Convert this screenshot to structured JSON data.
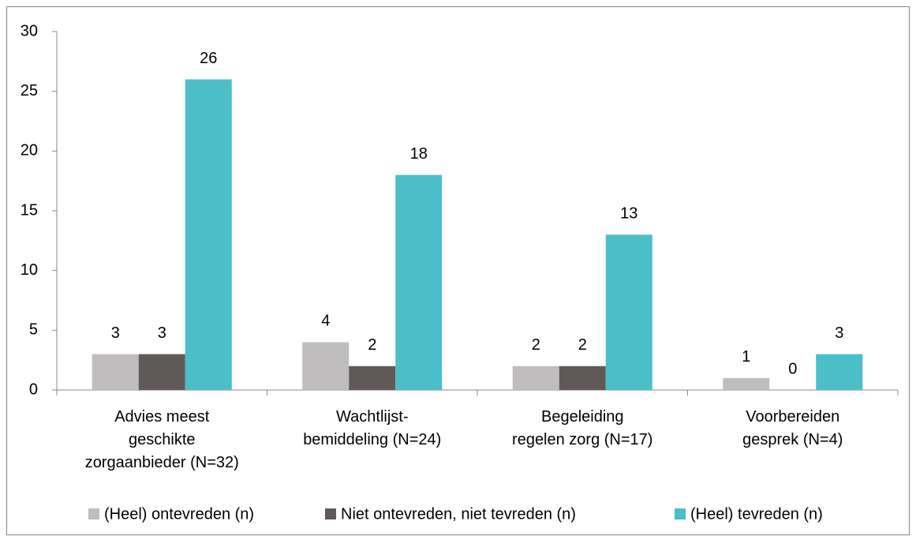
{
  "chart_data": {
    "type": "bar",
    "categories": [
      "Advies meest\ngeschikte\nzorgaanbieder (N=32)",
      "Wachtlijst-\nbemiddeling (N=24)",
      "Begeleiding\nregelen zorg (N=17)",
      "Voorbereiden\ngesprek (N=4)"
    ],
    "series": [
      {
        "name": "(Heel) ontevreden (n)",
        "color": "#bfbdbd",
        "values": [
          3,
          4,
          2,
          1
        ]
      },
      {
        "name": "Niet ontevreden, niet tevreden (n)",
        "color": "#5f5a57",
        "values": [
          3,
          2,
          2,
          0
        ]
      },
      {
        "name": "(Heel) tevreden (n)",
        "color": "#4bbec8",
        "values": [
          26,
          18,
          13,
          3
        ]
      }
    ],
    "ylim": [
      0,
      30
    ],
    "yticks": [
      0,
      5,
      10,
      15,
      20,
      25,
      30
    ],
    "legend": "bottom",
    "data_labels": true
  }
}
